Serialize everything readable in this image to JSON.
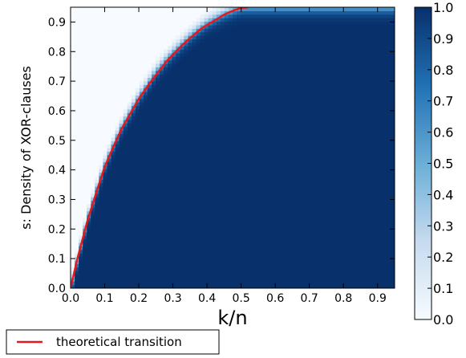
{
  "chart_data": {
    "type": "heatmap",
    "title": "",
    "xlabel": "k/n",
    "ylabel": "s: Density of XOR-clauses",
    "xlim": [
      0.0,
      0.95
    ],
    "ylim": [
      0.0,
      0.95
    ],
    "x_ticks": [
      "0.0",
      "0.1",
      "0.2",
      "0.3",
      "0.4",
      "0.5",
      "0.6",
      "0.7",
      "0.8",
      "0.9"
    ],
    "y_ticks": [
      "0.0",
      "0.1",
      "0.2",
      "0.3",
      "0.4",
      "0.5",
      "0.6",
      "0.7",
      "0.8",
      "0.9"
    ],
    "grid": false,
    "colormap": "Blues",
    "color_low": "#f7fbff",
    "color_high": "#08306b",
    "colorbar": {
      "range": [
        0.0,
        1.0
      ],
      "ticks": [
        "0.0",
        "0.1",
        "0.2",
        "0.3",
        "0.4",
        "0.5",
        "0.6",
        "0.7",
        "0.8",
        "0.9",
        "1.0"
      ]
    },
    "phase_boundary": {
      "description_visible": false,
      "x": [
        0.0,
        0.02,
        0.05,
        0.08,
        0.1,
        0.13,
        0.15,
        0.18,
        0.2,
        0.23,
        0.25,
        0.28,
        0.3,
        0.33,
        0.35,
        0.38,
        0.4,
        0.43,
        0.45,
        0.48,
        0.5,
        0.55,
        0.6,
        0.95
      ],
      "y": [
        0.0,
        0.1,
        0.24,
        0.35,
        0.42,
        0.5,
        0.55,
        0.61,
        0.65,
        0.7,
        0.735,
        0.775,
        0.8,
        0.833,
        0.855,
        0.883,
        0.9,
        0.919,
        0.93,
        0.943,
        0.95,
        0.95,
        0.95,
        0.95
      ]
    },
    "series": [
      {
        "name": "theoretical transition",
        "color": "#e41a1c",
        "x": [
          0.0,
          0.02,
          0.05,
          0.08,
          0.1,
          0.13,
          0.15,
          0.18,
          0.2,
          0.23,
          0.25,
          0.28,
          0.3,
          0.33,
          0.35,
          0.38,
          0.4,
          0.43,
          0.45,
          0.48,
          0.5,
          0.52
        ],
        "y": [
          0.0,
          0.1,
          0.23,
          0.34,
          0.41,
          0.49,
          0.54,
          0.6,
          0.64,
          0.69,
          0.72,
          0.765,
          0.79,
          0.825,
          0.845,
          0.875,
          0.89,
          0.91,
          0.925,
          0.94,
          0.947,
          0.95
        ]
      }
    ],
    "legend": {
      "position": "bottom-left",
      "entries": [
        "theoretical transition"
      ]
    }
  }
}
